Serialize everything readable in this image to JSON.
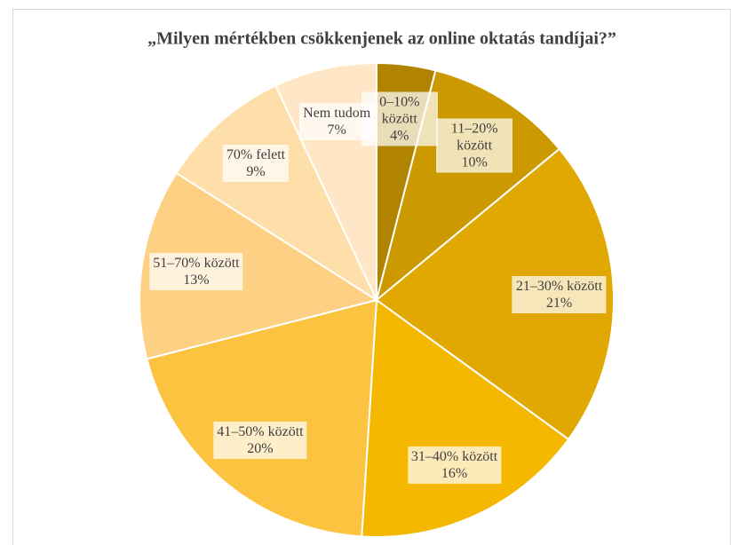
{
  "chart_data": {
    "type": "pie",
    "title": "„Milyen mértékben csökkenjenek az online oktatás tandíjai?”",
    "categories": [
      "0–10% között",
      "11–20% között",
      "21–30% között",
      "31–40% között",
      "41–50% között",
      "51–70% között",
      "70% felett",
      "Nem tudom"
    ],
    "values": [
      4,
      10,
      21,
      16,
      20,
      13,
      9,
      7
    ],
    "value_labels": [
      "4%",
      "10%",
      "21%",
      "16%",
      "20%",
      "13%",
      "9%",
      "7%"
    ],
    "colors": [
      "#b08300",
      "#cc9a00",
      "#e0a800",
      "#f4b800",
      "#fcc341",
      "#fdd084",
      "#fedfaa",
      "#ffe6c6"
    ]
  }
}
